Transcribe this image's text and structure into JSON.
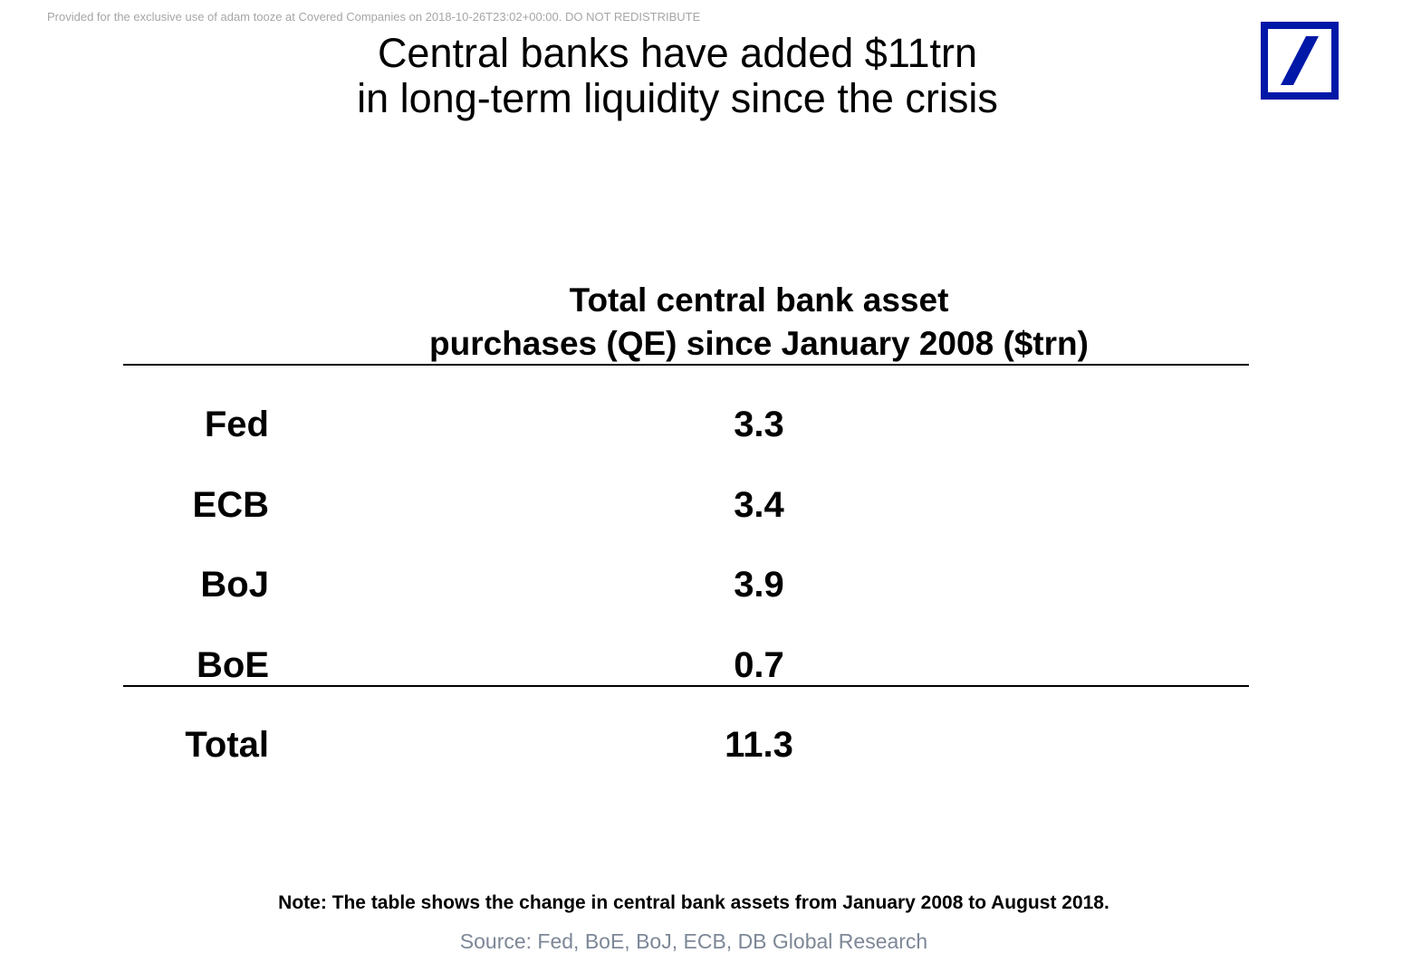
{
  "watermark": "Provided for the exclusive use of adam tooze at Covered Companies on 2018-10-26T23:02+00:00. DO NOT REDISTRIBUTE",
  "title": {
    "line1": "Central banks have added $11trn",
    "line2": "in long-term liquidity since the crisis"
  },
  "logo": {
    "icon": "deutsche-bank-logo",
    "color": "#0018A8"
  },
  "table": {
    "header_line1": "Total central bank asset",
    "header_line2": "purchases (QE) since January 2008 ($trn)",
    "rows": [
      {
        "label": "Fed",
        "value": "3.3"
      },
      {
        "label": "ECB",
        "value": "3.4"
      },
      {
        "label": "BoJ",
        "value": "3.9"
      },
      {
        "label": "BoE",
        "value": "0.7"
      }
    ],
    "total": {
      "label": "Total",
      "value": "11.3"
    }
  },
  "note": "Note: The table shows the change in central bank assets from January 2008 to August 2018.",
  "source": "Source: Fed, BoE, BoJ, ECB, DB Global Research"
}
